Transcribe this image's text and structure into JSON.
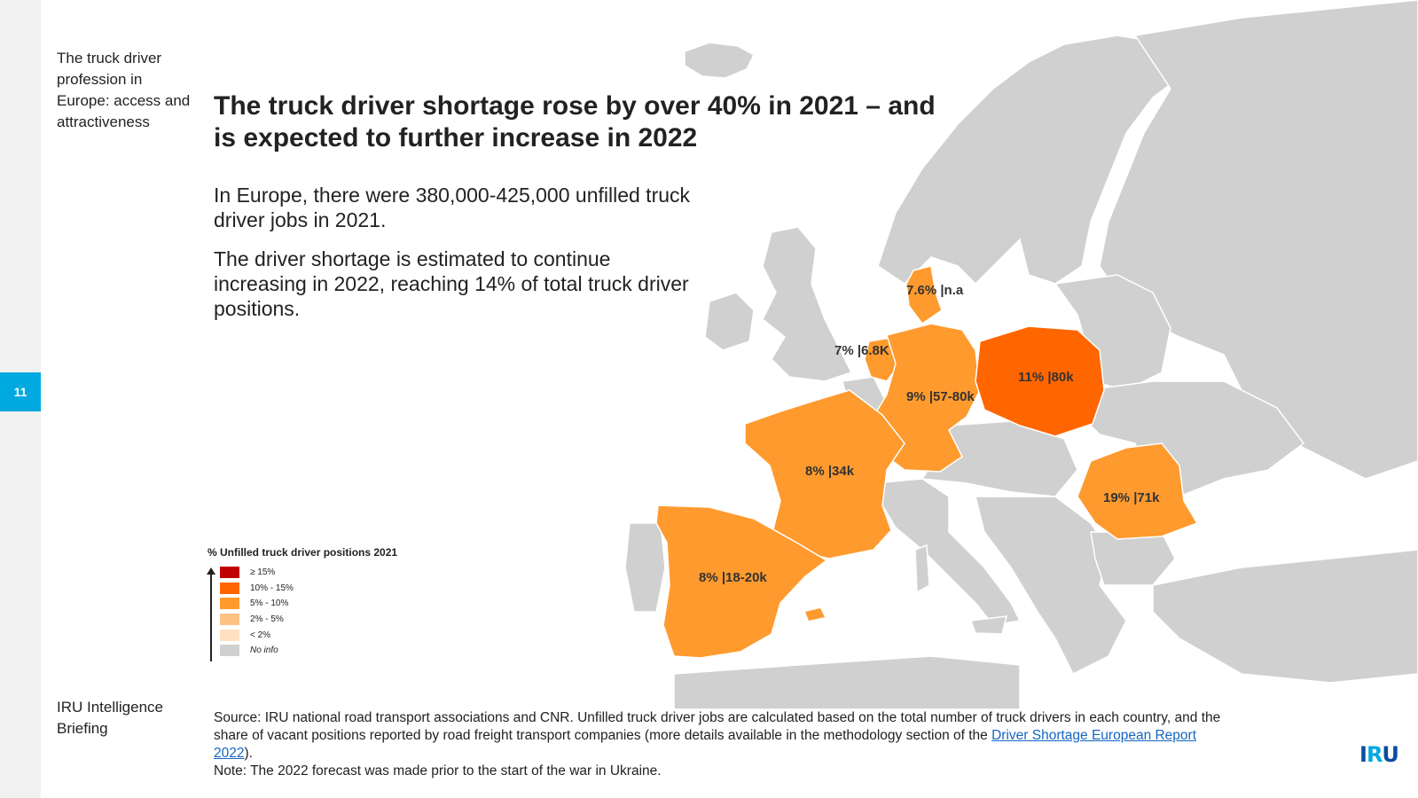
{
  "section_title": "The truck driver profession in Europe: access and attractiveness",
  "page_number": "11",
  "headline": "The truck driver shortage rose by over 40% in 2021 – and is expected to further increase in 2022",
  "paragraphs": [
    "In Europe, there were 380,000-425,000 unfilled truck driver jobs in 2021.",
    "The driver shortage is estimated to continue increasing in 2022, reaching 14% of total truck driver positions."
  ],
  "map_labels": {
    "denmark": "7.6% |n.a",
    "netherlands": "7% |6.8K",
    "poland": "11% |80k",
    "germany": "9% |57-80k",
    "france": "8% |34k",
    "romania": "19% |71k",
    "spain": "8% |18-20k"
  },
  "legend": {
    "title": "% Unfilled truck driver positions 2021",
    "items": [
      {
        "label": "≥ 15%",
        "color": "#c00000"
      },
      {
        "label": "10% - 15%",
        "color": "#ff6600"
      },
      {
        "label": "5% - 10%",
        "color": "#ff9a2e"
      },
      {
        "label": "2% - 5%",
        "color": "#ffc285"
      },
      {
        "label": "< 2%",
        "color": "#ffe0c2"
      },
      {
        "label": "No info",
        "color": "#d0d0d0"
      }
    ]
  },
  "colors": {
    "no_info": "#d0d0d0",
    "band_10_15": "#ff6600",
    "band_5_10": "#ff9a2e",
    "accent": "#00a9e0"
  },
  "brand": "IRU Intelligence Briefing",
  "source": {
    "text_before_link": "Source: IRU national road transport associations and CNR. Unfilled truck driver jobs are calculated based on the total number of truck drivers in each country, and the share of vacant positions reported by road freight transport companies (more details available in the methodology section of the ",
    "link_text": "Driver Shortage European Report 2022",
    "text_after_link": ").",
    "note": "Note: The 2022 forecast was made prior to the start of the war in Ukraine."
  },
  "logo": {
    "part1": "I",
    "part2": "R",
    "part3": "U"
  }
}
